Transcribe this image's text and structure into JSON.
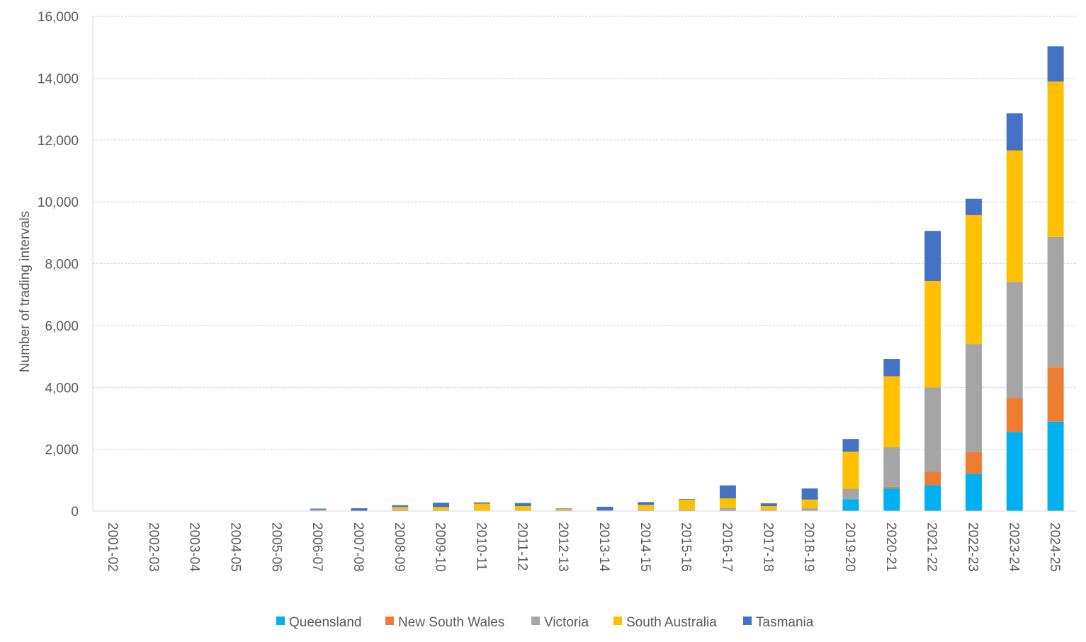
{
  "chart_data": {
    "type": "bar",
    "stacked": true,
    "title": "",
    "xlabel": "",
    "ylabel": "Number of trading intervals",
    "ylim": [
      0,
      16000
    ],
    "yticks": [
      0,
      2000,
      4000,
      6000,
      8000,
      10000,
      12000,
      14000,
      16000
    ],
    "ytick_labels": [
      "0",
      "2,000",
      "4,000",
      "6,000",
      "8,000",
      "10,000",
      "12,000",
      "14,000",
      "16,000"
    ],
    "grid": "horizontal dashed",
    "legend_position": "bottom",
    "categories": [
      "2001-02",
      "2002-03",
      "2003-04",
      "2004-05",
      "2005-06",
      "2006-07",
      "2007-08",
      "2008-09",
      "2009-10",
      "2010-11",
      "2011-12",
      "2012-13",
      "2013-14",
      "2014-15",
      "2015-16",
      "2016-17",
      "2017-18",
      "2018-19",
      "2019-20",
      "2020-21",
      "2021-22",
      "2022-23",
      "2023-24",
      "2024-25"
    ],
    "series": [
      {
        "name": "Queensland",
        "color": "#00B0F0",
        "values": [
          10,
          0,
          0,
          10,
          10,
          0,
          0,
          0,
          0,
          0,
          0,
          0,
          0,
          0,
          0,
          0,
          0,
          0,
          380,
          730,
          840,
          1200,
          2560,
          2890
        ]
      },
      {
        "name": "New South Wales",
        "color": "#ED7D31",
        "values": [
          0,
          0,
          0,
          0,
          0,
          0,
          0,
          0,
          0,
          0,
          0,
          0,
          0,
          0,
          0,
          0,
          0,
          0,
          0,
          50,
          430,
          700,
          1100,
          1750
        ]
      },
      {
        "name": "Victoria",
        "color": "#A5A5A5",
        "values": [
          0,
          0,
          0,
          0,
          0,
          50,
          0,
          50,
          30,
          10,
          20,
          50,
          20,
          40,
          40,
          100,
          40,
          90,
          340,
          1280,
          2730,
          3500,
          3750,
          4220
        ]
      },
      {
        "name": "South Australia",
        "color": "#FFC000",
        "values": [
          0,
          10,
          10,
          0,
          0,
          0,
          0,
          80,
          100,
          230,
          140,
          30,
          0,
          160,
          330,
          310,
          120,
          280,
          1200,
          2300,
          3440,
          4170,
          4250,
          5030
        ]
      },
      {
        "name": "Tasmania",
        "color": "#4472C4",
        "values": [
          0,
          0,
          0,
          0,
          0,
          30,
          90,
          60,
          140,
          40,
          100,
          10,
          120,
          90,
          20,
          420,
          90,
          360,
          410,
          560,
          1620,
          530,
          1200,
          1140
        ]
      }
    ]
  }
}
